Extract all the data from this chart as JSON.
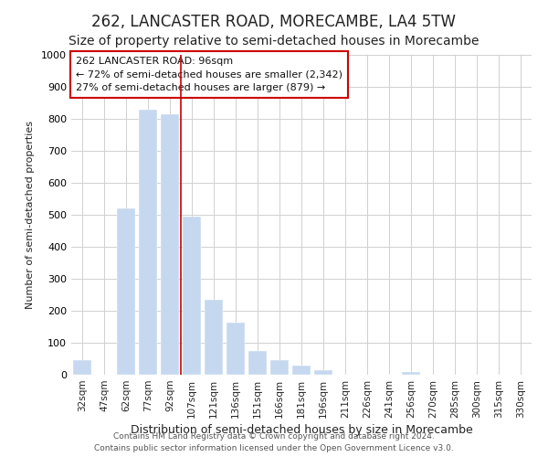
{
  "title": "262, LANCASTER ROAD, MORECAMBE, LA4 5TW",
  "subtitle": "Size of property relative to semi-detached houses in Morecambe",
  "xlabel": "Distribution of semi-detached houses by size in Morecambe",
  "ylabel": "Number of semi-detached properties",
  "categories": [
    "32sqm",
    "47sqm",
    "62sqm",
    "77sqm",
    "92sqm",
    "107sqm",
    "121sqm",
    "136sqm",
    "151sqm",
    "166sqm",
    "181sqm",
    "196sqm",
    "211sqm",
    "226sqm",
    "241sqm",
    "256sqm",
    "270sqm",
    "285sqm",
    "300sqm",
    "315sqm",
    "330sqm"
  ],
  "values": [
    45,
    0,
    520,
    830,
    815,
    495,
    235,
    162,
    75,
    45,
    30,
    15,
    0,
    0,
    0,
    8,
    0,
    0,
    0,
    0,
    0
  ],
  "bar_color": "#c5d8ef",
  "annotation_line1": "262 LANCASTER ROAD: 96sqm",
  "annotation_line2": "← 72% of semi-detached houses are smaller (2,342)",
  "annotation_line3": "27% of semi-detached houses are larger (879) →",
  "annotation_box_edge": "#cc0000",
  "vertical_line_color": "#cc0000",
  "vertical_line_x": 4.5,
  "ylim": [
    0,
    1000
  ],
  "yticks": [
    0,
    100,
    200,
    300,
    400,
    500,
    600,
    700,
    800,
    900,
    1000
  ],
  "footer1": "Contains HM Land Registry data © Crown copyright and database right 2024.",
  "footer2": "Contains public sector information licensed under the Open Government Licence v3.0.",
  "grid_color": "#d0d0d0",
  "background_color": "#ffffff",
  "title_fontsize": 12,
  "subtitle_fontsize": 10
}
